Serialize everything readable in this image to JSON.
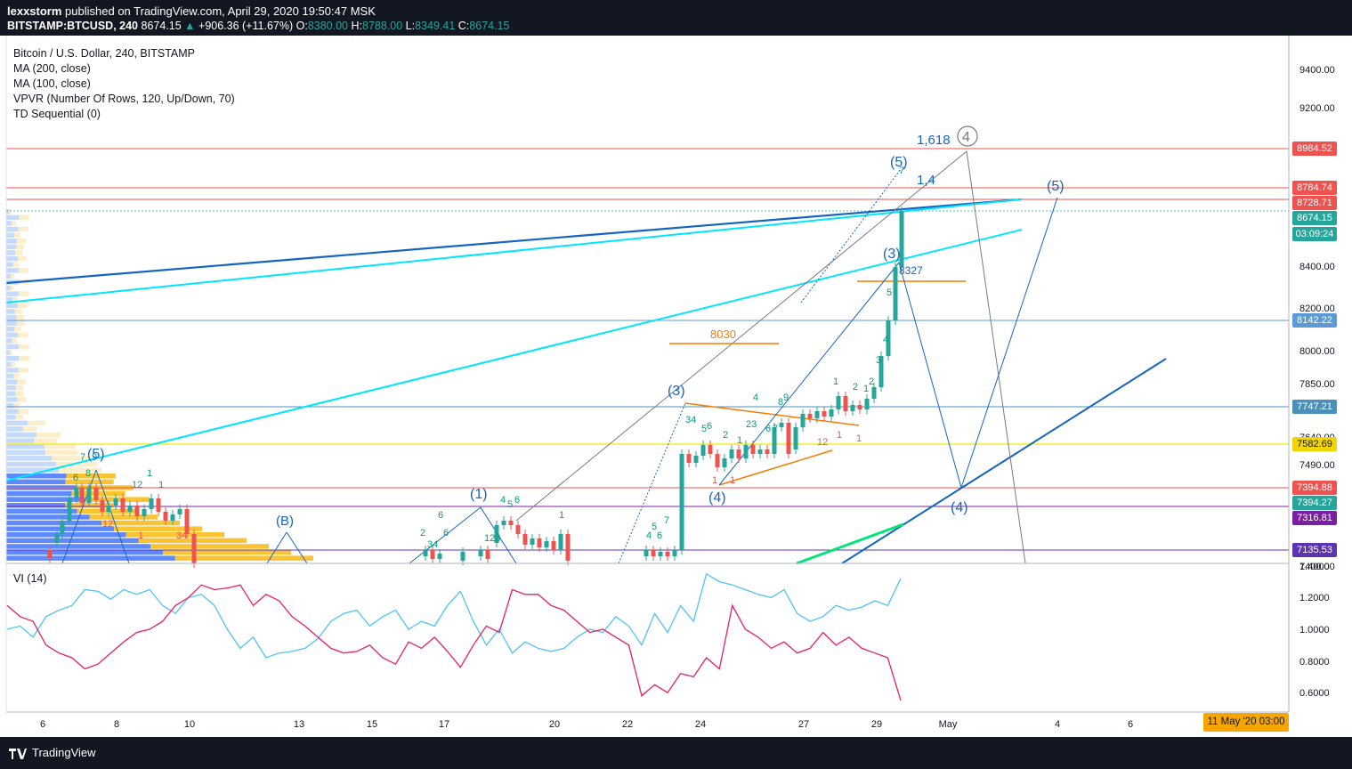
{
  "header": {
    "publisher": "lexxstorm",
    "published_text": "published on TradingView.com, April 29, 2020 19:50:47 MSK",
    "symbol": "BITSTAMP:BTCUSD, 240",
    "last": "8674.15",
    "change": "+906.36 (+11.67%)",
    "o_label": "O:",
    "o": "8380.00",
    "h_label": "H:",
    "h": "8788.00",
    "l_label": "L:",
    "l": "8349.41",
    "c_label": "C:",
    "c": "8674.15"
  },
  "legend": {
    "title": "Bitcoin / U.S. Dollar, 240, BITSTAMP",
    "items": [
      "MA (200, close)",
      "MA (100, close)",
      "VPVR (Number Of Rows, 120, Up/Down, 70)",
      "TD Sequential (0)"
    ]
  },
  "vi_label": "VI (14)",
  "footer": {
    "brand": "TradingView"
  },
  "time_badge": "11 May '20   03:00",
  "colors": {
    "up": "#26a69a",
    "down": "#ef5350",
    "cyan": "#00e5ff",
    "blue": "#1565c0",
    "orange": "#f57c00",
    "vi_plus": "#4fc3f7",
    "vi_minus": "#e91e63"
  },
  "chart_data": {
    "type": "line",
    "price_axis_ticks": [
      9400,
      9200,
      8400,
      8200,
      8000,
      7850,
      7640,
      7490,
      7400
    ],
    "price_axis_tick_labels": [
      "9400.00",
      "9200.00",
      "8400.00",
      "8200.00",
      "8000.00",
      "7850.00",
      "7640.00",
      "7490.00",
      "7400.00"
    ],
    "price_badges": [
      {
        "label": "8984.52",
        "color": "#ef5350"
      },
      {
        "label": "8784.74",
        "color": "#ef5350"
      },
      {
        "label": "8728.71",
        "color": "#ef5350"
      },
      {
        "label": "8674.15",
        "color": "#26a69a"
      },
      {
        "label": "03:09:24",
        "color": "#26a69a"
      },
      {
        "label": "8142.22",
        "color": "#5b9bd5"
      },
      {
        "label": "7747.21",
        "color": "#4a90b8"
      },
      {
        "label": "7582.69",
        "color": "#f2d500"
      },
      {
        "label": "7394.88",
        "color": "#ef5350"
      },
      {
        "label": "7394.27",
        "color": "#26a69a"
      },
      {
        "label": "7316.81",
        "color": "#7b1fa2"
      },
      {
        "label": "7135.53",
        "color": "#5e35b1"
      }
    ],
    "x_tick_labels": [
      "6",
      "8",
      "10",
      "13",
      "15",
      "17",
      "20",
      "22",
      "24",
      "27",
      "29",
      "May",
      "4",
      "6"
    ],
    "vi_axis_ticks": [
      "1.4000",
      "1.2000",
      "1.0000",
      "0.8000",
      "0.6000"
    ],
    "annotations": [
      "1,618",
      "1,4",
      "8030",
      "8327",
      "(5)",
      "(5)",
      "(3)",
      "(3)",
      "(4)",
      "(4)",
      "(1)",
      "(B)",
      "(5)",
      "4"
    ],
    "vi_plus": [
      1.0,
      1.02,
      0.95,
      1.08,
      1.12,
      1.15,
      1.25,
      1.24,
      1.19,
      1.25,
      1.22,
      1.25,
      1.15,
      1.1,
      1.2,
      1.22,
      1.15,
      1.0,
      0.88,
      0.95,
      0.82,
      0.85,
      0.86,
      0.88,
      0.94,
      1.05,
      1.1,
      1.12,
      1.02,
      1.08,
      1.12,
      1.0,
      1.05,
      1.02,
      1.15,
      1.24,
      1.05,
      0.9,
      1.0,
      0.85,
      0.92,
      0.88,
      0.86,
      0.88,
      0.95,
      1.0,
      0.98,
      1.08,
      1.02,
      0.9,
      1.1,
      0.98,
      1.15,
      1.05,
      1.35,
      1.3,
      1.28,
      1.25,
      1.22,
      1.2,
      1.25,
      1.1,
      1.05,
      1.08,
      1.15,
      1.12,
      1.14,
      1.18,
      1.15,
      1.32
    ],
    "vi_minus": [
      1.15,
      1.08,
      1.05,
      0.9,
      0.85,
      0.82,
      0.75,
      0.78,
      0.85,
      0.92,
      0.98,
      1.0,
      1.05,
      1.15,
      1.2,
      1.28,
      1.25,
      1.26,
      1.28,
      1.15,
      1.22,
      1.18,
      1.08,
      1.02,
      0.95,
      0.88,
      0.85,
      0.86,
      0.9,
      0.82,
      0.78,
      0.92,
      0.88,
      0.95,
      0.86,
      0.76,
      0.9,
      1.02,
      0.98,
      1.25,
      1.22,
      1.22,
      1.15,
      1.12,
      1.05,
      0.98,
      1.0,
      0.95,
      0.9,
      0.58,
      0.65,
      0.6,
      0.72,
      0.7,
      0.82,
      0.75,
      1.15,
      1.0,
      0.95,
      0.88,
      0.92,
      0.85,
      0.88,
      0.98,
      0.9,
      0.95,
      0.88,
      0.85,
      0.82,
      0.55
    ]
  }
}
